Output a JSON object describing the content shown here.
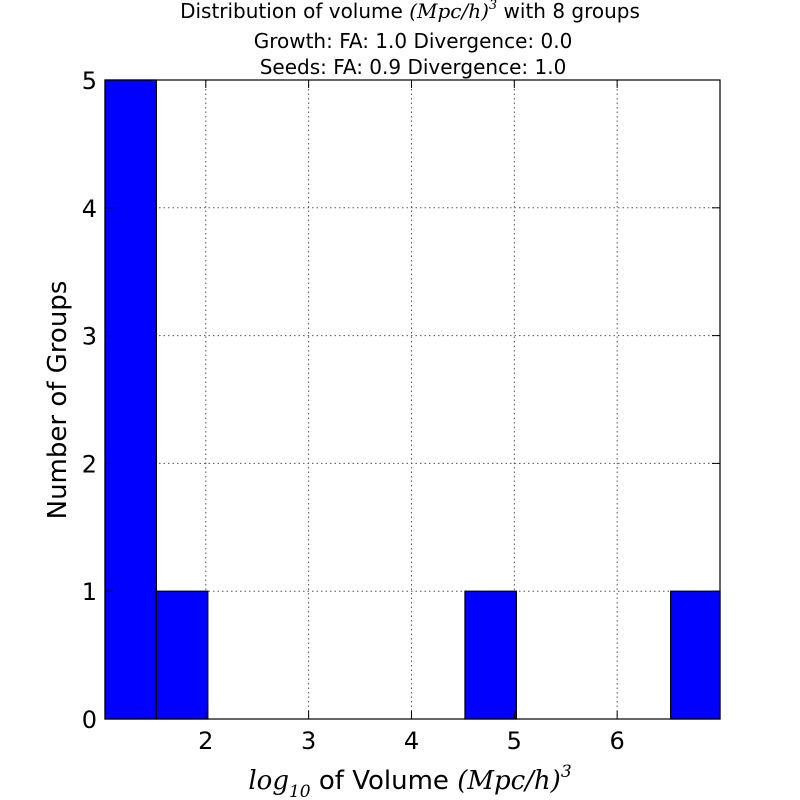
{
  "chart_data": {
    "type": "bar",
    "title": {
      "line1_prefix": "Distribution of volume",
      "line1_math": "(Mpc/h)",
      "line1_math_sup": "3",
      "line1_suffix": "with 8 groups",
      "line2": "Growth: FA: 1.0 Divergence: 0.0",
      "line3": "Seeds: FA: 0.9 Divergence: 1.0"
    },
    "xlabel": {
      "prefix_math": "log",
      "prefix_sub": "10",
      "text": "of Volume",
      "math": "(Mpc/h)",
      "sup": "3"
    },
    "ylabel": "Number of Groups",
    "xlim": [
      1.02,
      7.0
    ],
    "ylim": [
      0,
      5
    ],
    "xticks": [
      2,
      3,
      4,
      5,
      6
    ],
    "yticks": [
      0,
      1,
      2,
      3,
      4,
      5
    ],
    "grid": true,
    "bar_color": "#0000ff",
    "bar_edge_color": "#000000",
    "bins": [
      {
        "x0": 1.02,
        "x1": 1.52,
        "count": 5
      },
      {
        "x0": 1.52,
        "x1": 2.02,
        "count": 1
      },
      {
        "x0": 2.02,
        "x1": 2.52,
        "count": 0
      },
      {
        "x0": 2.52,
        "x1": 3.02,
        "count": 0
      },
      {
        "x0": 3.02,
        "x1": 3.52,
        "count": 0
      },
      {
        "x0": 3.52,
        "x1": 4.02,
        "count": 0
      },
      {
        "x0": 4.02,
        "x1": 4.52,
        "count": 0
      },
      {
        "x0": 4.52,
        "x1": 5.02,
        "count": 1
      },
      {
        "x0": 5.02,
        "x1": 5.52,
        "count": 0
      },
      {
        "x0": 5.52,
        "x1": 6.02,
        "count": 0
      },
      {
        "x0": 6.02,
        "x1": 6.52,
        "count": 0
      },
      {
        "x0": 6.52,
        "x1": 7.02,
        "count": 1
      }
    ]
  }
}
